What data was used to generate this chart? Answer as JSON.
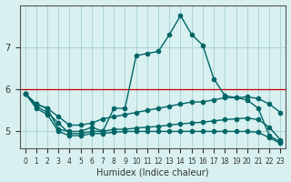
{
  "xlabel": "Humidex (Indice chaleur)",
  "ylabel": "",
  "background_color": "#d8f0f0",
  "grid_color": "#aad4d4",
  "line_color": "#006666",
  "red_line_color": "#cc0000",
  "x_values": [
    0,
    1,
    2,
    3,
    4,
    5,
    6,
    7,
    8,
    9,
    10,
    11,
    12,
    13,
    14,
    15,
    16,
    17,
    18,
    19,
    20,
    21,
    22,
    23
  ],
  "line1": [
    5.9,
    5.65,
    5.55,
    5.05,
    5.0,
    5.0,
    5.1,
    5.0,
    5.55,
    5.55,
    6.8,
    6.85,
    6.9,
    7.3,
    7.75,
    7.3,
    7.05,
    6.25,
    5.85,
    5.8,
    5.75,
    5.55,
    4.9,
    4.75
  ],
  "line2": [
    5.9,
    5.65,
    5.55,
    5.35,
    5.15,
    5.15,
    5.2,
    5.3,
    5.35,
    5.4,
    5.45,
    5.5,
    5.55,
    5.6,
    5.65,
    5.7,
    5.7,
    5.75,
    5.8,
    5.8,
    5.82,
    5.78,
    5.65,
    5.45
  ],
  "line3": [
    5.9,
    5.6,
    5.45,
    5.2,
    4.95,
    4.95,
    5.0,
    5.0,
    5.05,
    5.05,
    5.08,
    5.1,
    5.12,
    5.15,
    5.18,
    5.2,
    5.22,
    5.25,
    5.28,
    5.3,
    5.32,
    5.28,
    5.1,
    4.8
  ],
  "line4": [
    5.9,
    5.55,
    5.4,
    5.0,
    4.9,
    4.9,
    4.95,
    4.95,
    4.98,
    5.0,
    5.0,
    5.0,
    5.0,
    5.0,
    5.0,
    5.0,
    5.0,
    5.0,
    5.0,
    5.0,
    5.0,
    4.98,
    4.85,
    4.72
  ],
  "red_line_y": 6.0,
  "ylim": [
    4.6,
    8.0
  ],
  "xlim": [
    -0.5,
    23.5
  ],
  "yticks": [
    5,
    6,
    7
  ],
  "xticks": [
    0,
    1,
    2,
    3,
    4,
    5,
    6,
    7,
    8,
    9,
    10,
    11,
    12,
    13,
    14,
    15,
    16,
    17,
    18,
    19,
    20,
    21,
    22,
    23
  ]
}
